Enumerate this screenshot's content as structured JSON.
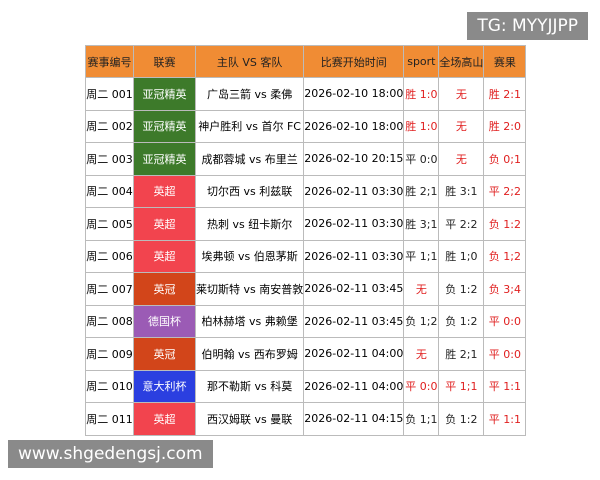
{
  "watermark_top": "TG: MYYJJPP",
  "watermark_bottom": "www.shgedengsj.com",
  "table": {
    "header": [
      "赛事编号",
      "联赛",
      "主队 VS 客队",
      "比赛开始时间",
      "sport",
      "全场高山",
      "赛果"
    ],
    "header_color": "#f08c34",
    "rows": [
      [
        "周二 001",
        "亚冠精英",
        "广岛三箭 vs 柔佛",
        "2026-02-10 18:00",
        "胜 1:0",
        "无",
        "胜 2:1"
      ],
      [
        "周二 002",
        "亚冠精英",
        "神户胜利 vs 首尔 FC",
        "2026-02-10 18:00",
        "胜 1:0",
        "无",
        "胜 2:0"
      ],
      [
        "周二 003",
        "亚冠精英",
        "成都蓉城 vs 布里兰",
        "2026-02-10 20:15",
        "平 0:0",
        "无",
        "负 0;1"
      ],
      [
        "周二 004",
        "英超",
        "切尔西 vs 利兹联",
        "2026-02-11 03:30",
        "胜 2;1",
        "胜 3:1",
        "平 2;2"
      ],
      [
        "周二 005",
        "英超",
        "热刺 vs 纽卡斯尔",
        "2026-02-11 03:30",
        "胜 3;1",
        "平 2:2",
        "负 1:2"
      ],
      [
        "周二 006",
        "英超",
        "埃弗顿 vs 伯恩茅斯",
        "2026-02-11 03:30",
        "平 1;1",
        "胜 1;0",
        "负 1;2"
      ],
      [
        "周二 007",
        "英冠",
        "莱切斯特 vs 南安普敦",
        "2026-02-11 03:45",
        "无",
        "负 1:2",
        "负 3;4"
      ],
      [
        "周二 008",
        "德国杯",
        "柏林赫塔 vs 弗赖堡",
        "2026-02-11 03:45",
        "负 1;2",
        "负 1:2",
        "平 0:0"
      ],
      [
        "周二 009",
        "英冠",
        "伯明翰 vs 西布罗姆",
        "2026-02-11 04:00",
        "无",
        "胜 2;1",
        "平 0:0"
      ],
      [
        "周二 010",
        "意大利杯",
        "那不勒斯 vs 科莫",
        "2026-02-11 04:00",
        "平 0:0",
        "平 1;1",
        "平 1:1"
      ],
      [
        "周二 011",
        "英超",
        "西汉姆联 vs 曼联",
        "2026-02-11 04:15",
        "负 1;1",
        "负 1:2",
        "平 1:1"
      ]
    ],
    "league_colors": [
      "#3d7a2a",
      "#3d7a2a",
      "#3d7a2a",
      "#f2444e",
      "#f2444e",
      "#f2444e",
      "#d2451a",
      "#9b5bb5",
      "#d2451a",
      "#2b3fe0",
      "#f2444e"
    ],
    "result_colors": [
      [
        "#e02020",
        "#e02020",
        "#e02020"
      ],
      [
        "#e02020",
        "#e02020",
        "#e02020"
      ],
      [
        "#222",
        "#e02020",
        "#e02020"
      ],
      [
        "#222",
        "#222",
        "#e02020"
      ],
      [
        "#222",
        "#222",
        "#e02020"
      ],
      [
        "#222",
        "#222",
        "#e02020"
      ],
      [
        "#e02020",
        "#222",
        "#e02020"
      ],
      [
        "#222",
        "#222",
        "#e02020"
      ],
      [
        "#e02020",
        "#222",
        "#e02020"
      ],
      [
        "#e02020",
        "#e02020",
        "#e02020"
      ],
      [
        "#222",
        "#222",
        "#e02020"
      ]
    ]
  }
}
